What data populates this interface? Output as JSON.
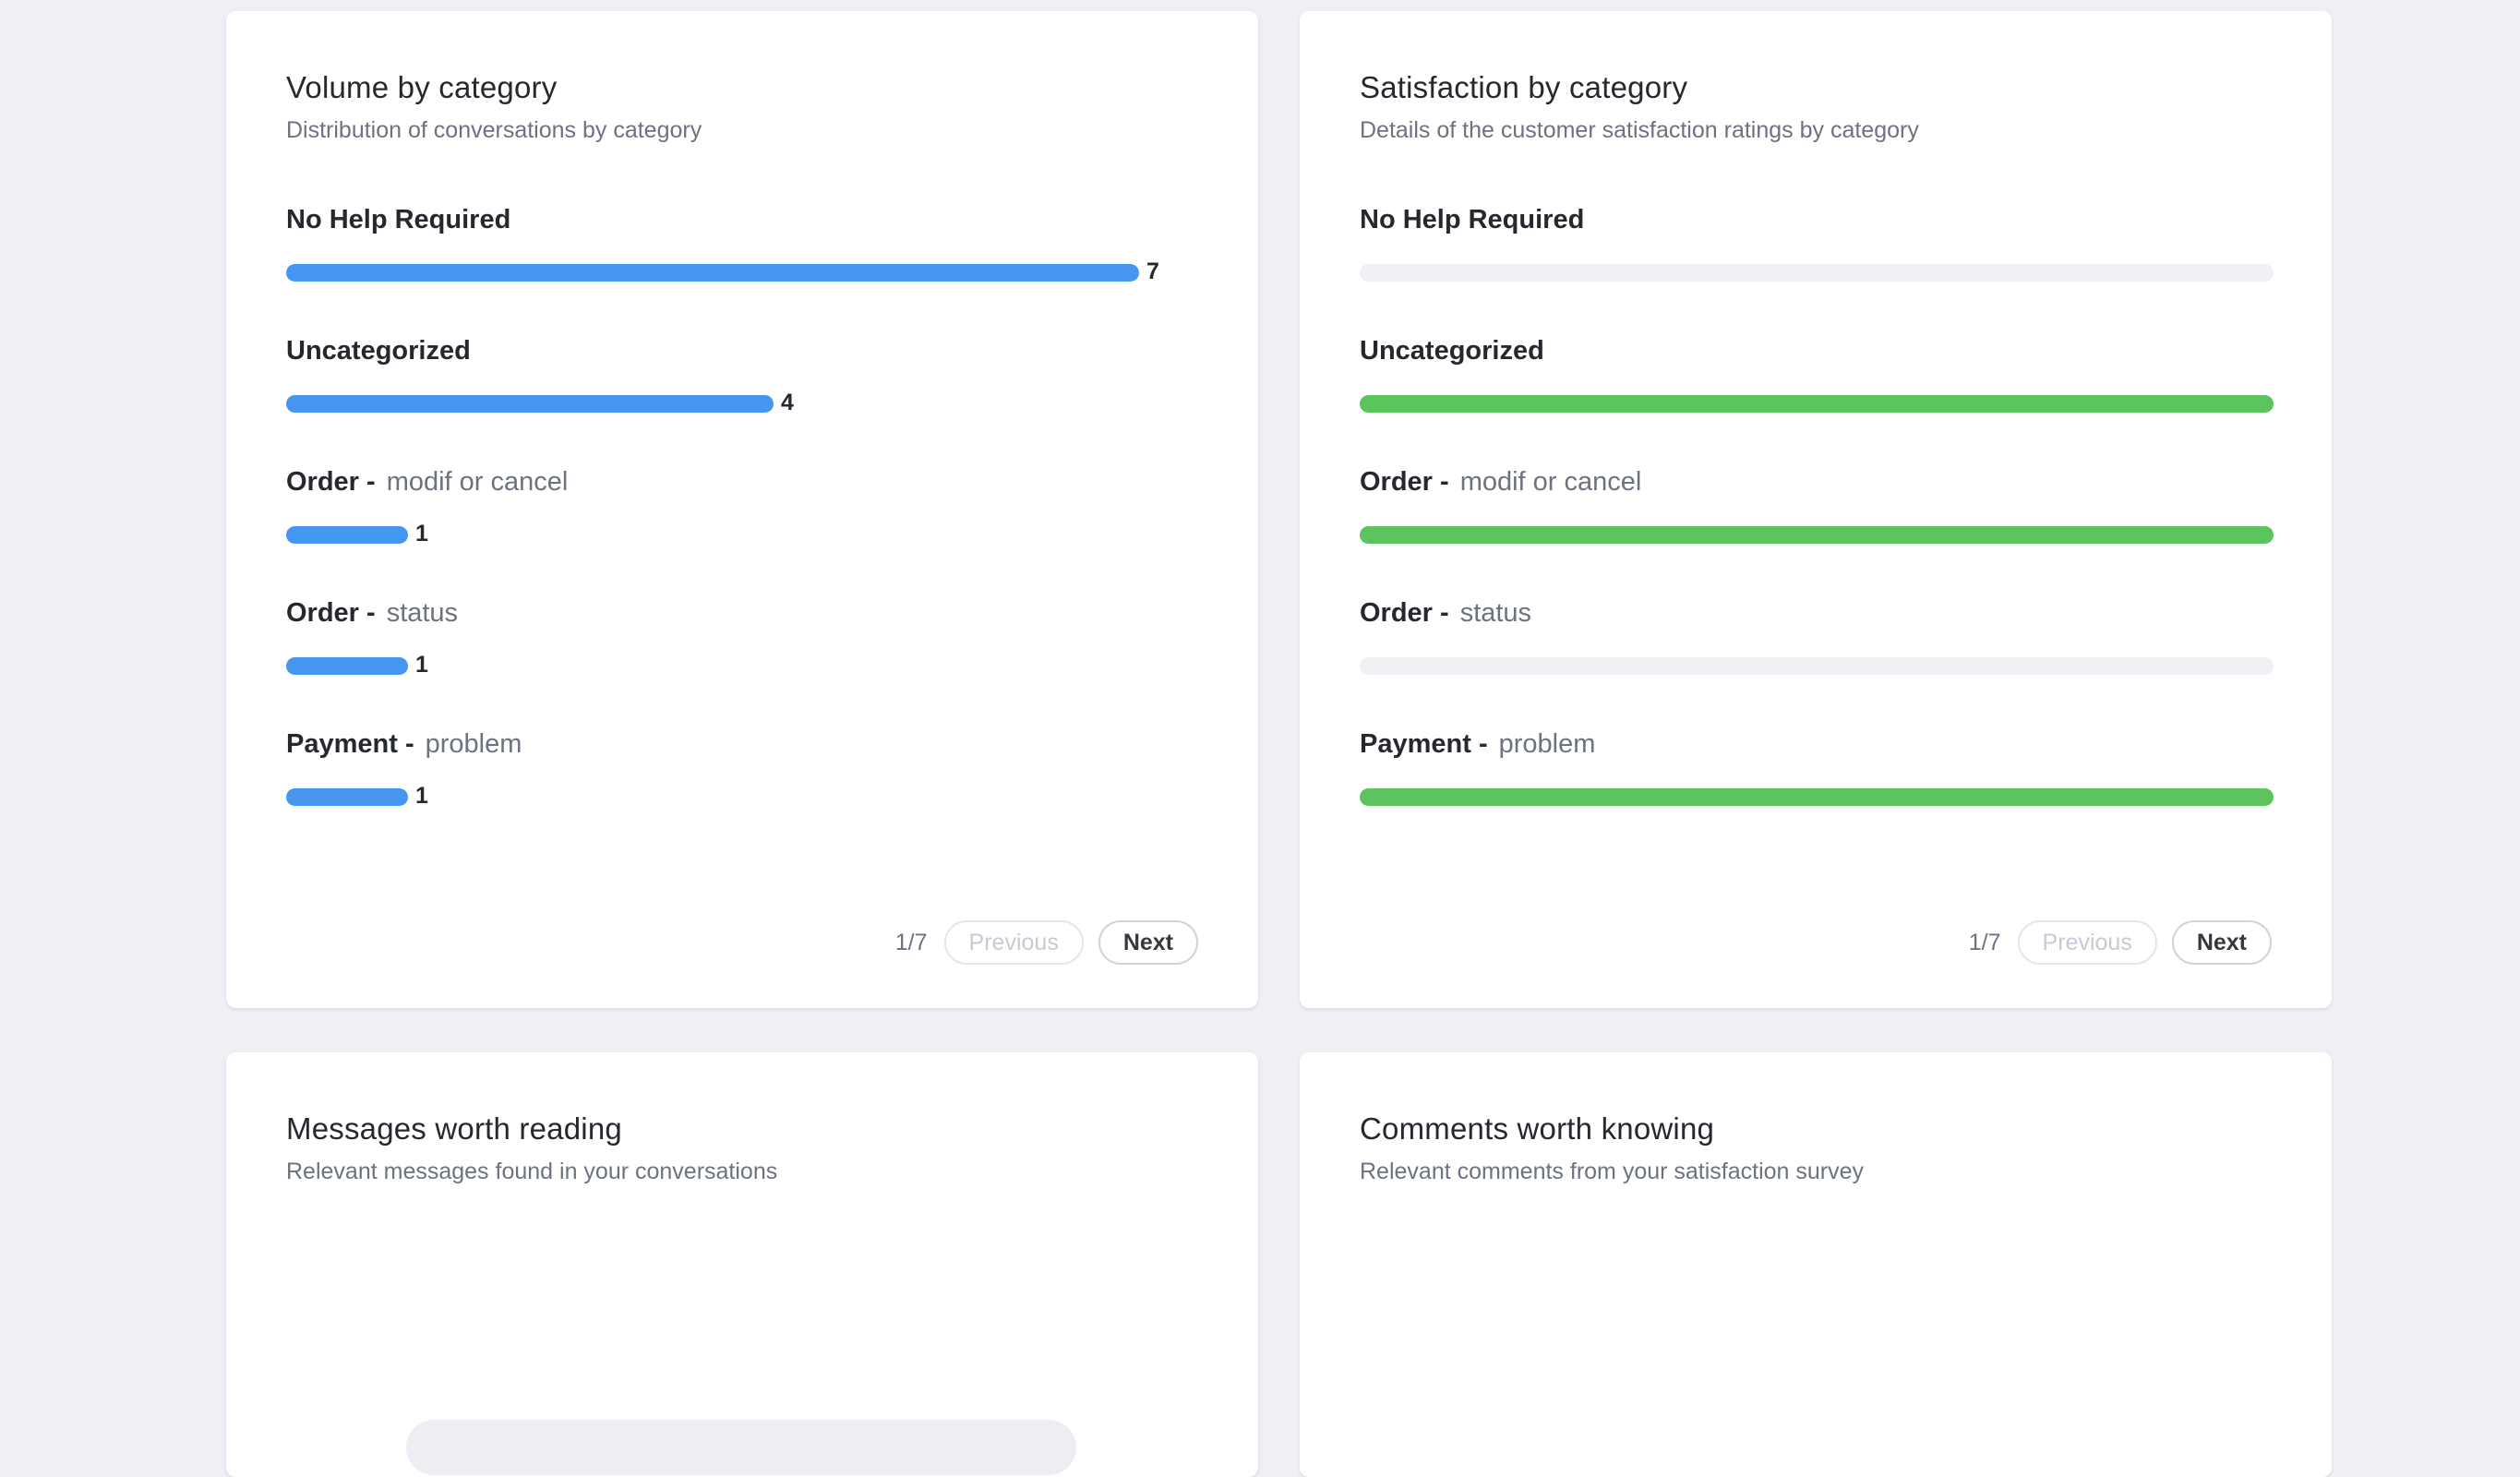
{
  "colors": {
    "page_bg": "#eef0f5",
    "card_bg": "#ffffff",
    "volume_bar": "#4496f0",
    "satisfaction_positive": "#5cc45d",
    "satisfaction_empty": "#eff0f4"
  },
  "volume_card": {
    "title": "Volume by category",
    "subtitle": "Distribution of conversations by category",
    "max_value": 7,
    "rows": [
      {
        "main": "No Help Required",
        "sub": "",
        "value": 7
      },
      {
        "main": "Uncategorized",
        "sub": "",
        "value": 4
      },
      {
        "main": "Order -",
        "sub": "modif or cancel",
        "value": 1
      },
      {
        "main": "Order -",
        "sub": "status",
        "value": 1
      },
      {
        "main": "Payment -",
        "sub": "problem",
        "value": 1
      }
    ],
    "pager": {
      "count": "1/7",
      "previous": "Previous",
      "next": "Next"
    }
  },
  "satisfaction_card": {
    "title": "Satisfaction by category",
    "subtitle": "Details of the customer satisfaction ratings by category",
    "rows": [
      {
        "main": "No Help Required",
        "sub": "",
        "positive_fraction": 0
      },
      {
        "main": "Uncategorized",
        "sub": "",
        "positive_fraction": 1
      },
      {
        "main": "Order -",
        "sub": "modif or cancel",
        "positive_fraction": 1
      },
      {
        "main": "Order -",
        "sub": "status",
        "positive_fraction": 0
      },
      {
        "main": "Payment -",
        "sub": "problem",
        "positive_fraction": 1
      }
    ],
    "pager": {
      "count": "1/7",
      "previous": "Previous",
      "next": "Next"
    }
  },
  "messages_card": {
    "title": "Messages worth reading",
    "subtitle": "Relevant messages found in your conversations"
  },
  "comments_card": {
    "title": "Comments worth knowing",
    "subtitle": "Relevant comments from your satisfaction survey"
  }
}
